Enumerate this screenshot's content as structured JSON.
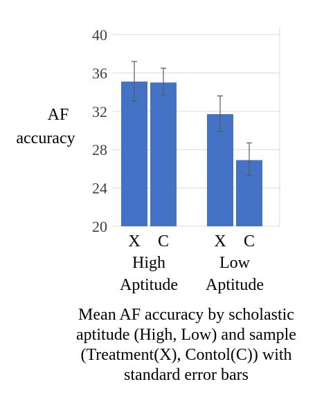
{
  "chart_data": {
    "type": "bar",
    "title": "",
    "ylabel_lines": [
      "AF",
      "accuracy"
    ],
    "xlabel": "",
    "ylim": [
      20,
      40
    ],
    "yticks": [
      "20",
      "24",
      "28",
      "32",
      "36",
      "40"
    ],
    "ytick_values": [
      20,
      24,
      28,
      32,
      36,
      40
    ],
    "grid": true,
    "legend": "none",
    "bar_color": "#4472C4",
    "categories": [
      "X",
      "C",
      "X",
      "C"
    ],
    "groups": [
      {
        "label_lines": [
          "High",
          "Aptitude"
        ],
        "categories": [
          "X",
          "C"
        ]
      },
      {
        "label_lines": [
          "Low",
          "Aptitude"
        ],
        "categories": [
          "X",
          "C"
        ]
      }
    ],
    "series": [
      {
        "values": [
          35.1,
          35.0,
          31.7,
          26.9
        ],
        "error_low": [
          33.1,
          33.7,
          29.9,
          25.3
        ],
        "error_high": [
          37.2,
          36.5,
          33.6,
          28.7
        ]
      }
    ]
  },
  "caption_lines": [
    "Mean AF accuracy by scholastic",
    "aptitude (High, Low) and sample",
    "(Treatment(X), Contol(C)) with",
    "standard error bars"
  ]
}
